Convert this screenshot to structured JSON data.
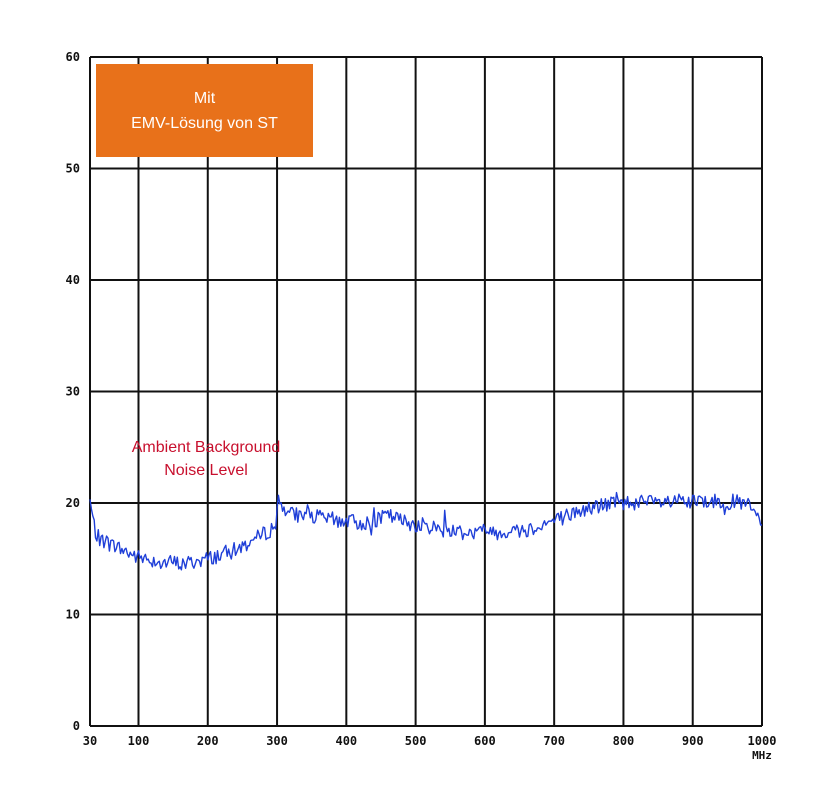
{
  "chart_data": {
    "type": "line",
    "title": "",
    "xlabel": "",
    "ylabel": "",
    "x_unit": "MHz",
    "xlim": [
      30,
      1000
    ],
    "ylim": [
      0,
      60
    ],
    "grid": true,
    "x_ticks": [
      30,
      100,
      200,
      300,
      400,
      500,
      600,
      700,
      800,
      900,
      1000
    ],
    "y_ticks": [
      0,
      10,
      20,
      30,
      40,
      50,
      60
    ],
    "badge": {
      "line1": "Mit",
      "line2": "EMV-Lösung von ST"
    },
    "annotation": {
      "line1": "Ambient Background",
      "line2": "Noise Level"
    },
    "colors": {
      "line": "#1f3fd8",
      "badge": "#e8711a",
      "annotation": "#c8102e",
      "grid": "#111111"
    },
    "series": [
      {
        "x": [
          30,
          35,
          40,
          50,
          60,
          70,
          80,
          90,
          100,
          110,
          120,
          130,
          140,
          150,
          160,
          170,
          180,
          190,
          200,
          210,
          220,
          230,
          240,
          250,
          260,
          270,
          280,
          290,
          298,
          300,
          302,
          310,
          320,
          340,
          360,
          380,
          400,
          420,
          440,
          460,
          480,
          500,
          520,
          540,
          560,
          580,
          600,
          620,
          640,
          660,
          680,
          700,
          720,
          740,
          760,
          780,
          800,
          820,
          840,
          860,
          880,
          900,
          920,
          940,
          960,
          980,
          1000
        ],
        "y": [
          20.2,
          18.2,
          17.0,
          16.6,
          16.3,
          16.0,
          15.7,
          15.4,
          15.1,
          15.0,
          14.9,
          14.7,
          14.6,
          14.7,
          14.5,
          14.6,
          14.7,
          14.9,
          15.0,
          15.2,
          15.4,
          15.6,
          15.8,
          16.1,
          16.5,
          16.8,
          17.2,
          17.6,
          17.9,
          19.6,
          20.3,
          19.6,
          19.0,
          18.9,
          18.7,
          18.5,
          18.4,
          18.2,
          18.3,
          18.9,
          18.4,
          18.1,
          17.9,
          17.6,
          17.5,
          17.3,
          17.5,
          17.4,
          17.5,
          17.6,
          18.0,
          18.4,
          18.9,
          19.3,
          19.7,
          19.9,
          20.0,
          20.1,
          20.0,
          20.0,
          20.1,
          20.0,
          20.2,
          20.1,
          20.1,
          19.8,
          18.2
        ]
      }
    ]
  }
}
